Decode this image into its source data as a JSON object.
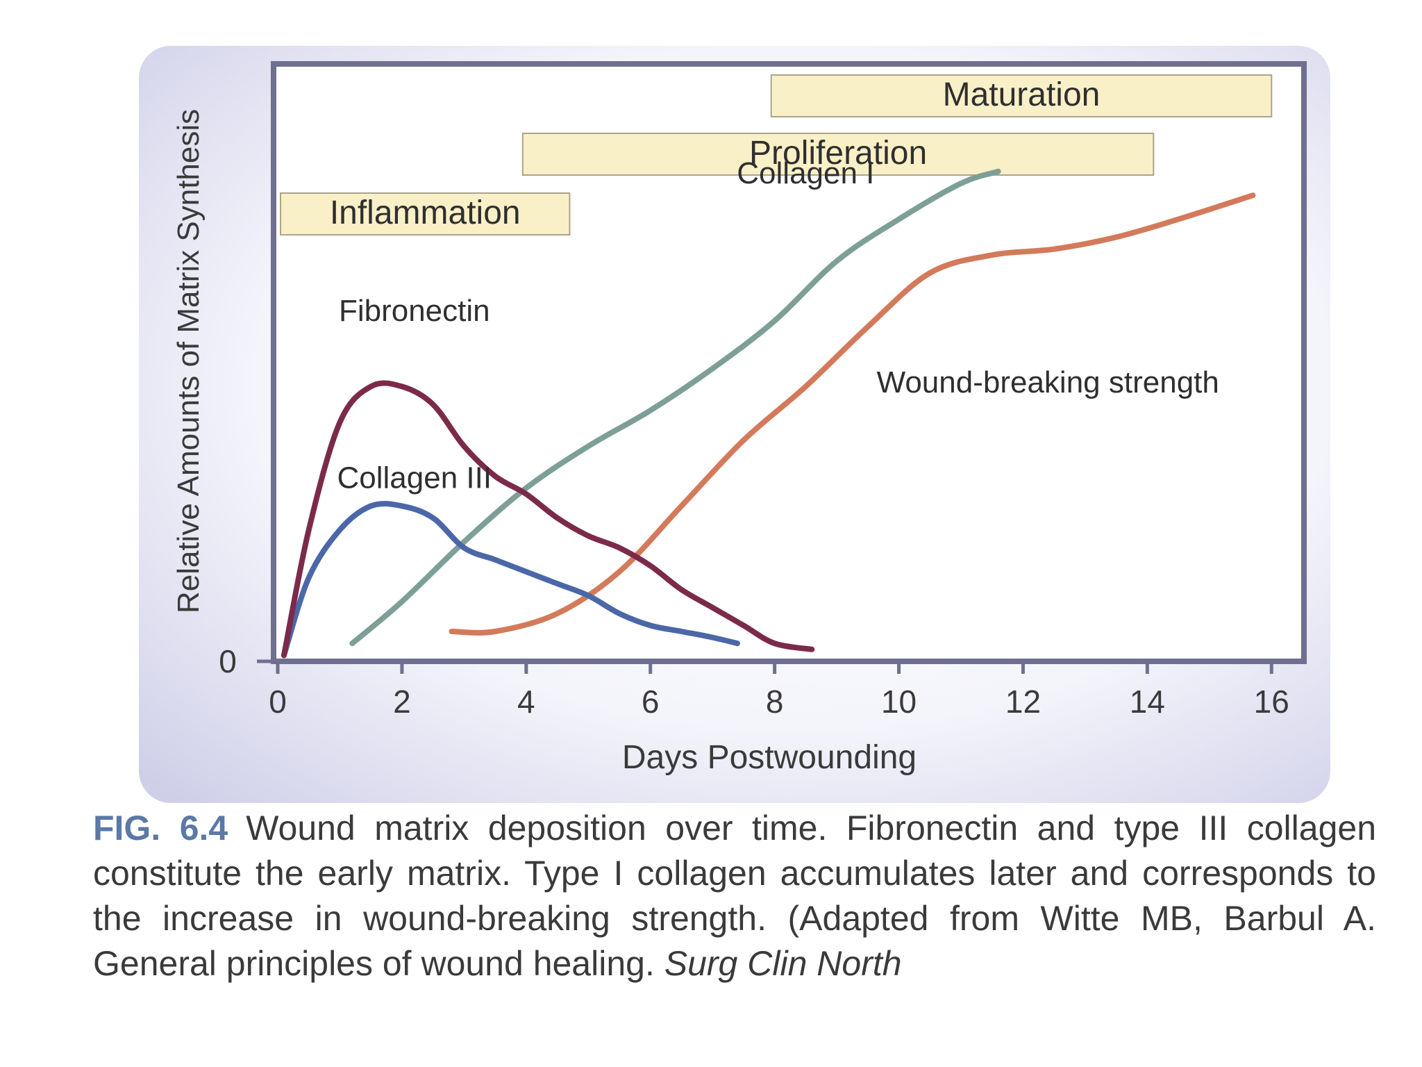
{
  "chart_data": {
    "type": "line",
    "xlabel": "Days Postwounding",
    "ylabel": "Relative Amounts of Matrix Synthesis",
    "xlim": [
      0,
      16.5
    ],
    "ylim": [
      0,
      10
    ],
    "x_ticks": [
      "0",
      "2",
      "4",
      "6",
      "8",
      "10",
      "12",
      "14",
      "16"
    ],
    "y_ticks": [
      "0"
    ],
    "grid": false,
    "series": [
      {
        "name": "Fibronectin",
        "color": "#7b2a4a",
        "points": [
          [
            0.1,
            0.1
          ],
          [
            0.5,
            2.2
          ],
          [
            1.0,
            4.0
          ],
          [
            1.5,
            4.6
          ],
          [
            2.0,
            4.6
          ],
          [
            2.5,
            4.3
          ],
          [
            3.0,
            3.6
          ],
          [
            3.5,
            3.1
          ],
          [
            4.0,
            2.8
          ],
          [
            4.5,
            2.4
          ],
          [
            5.0,
            2.1
          ],
          [
            5.5,
            1.9
          ],
          [
            6.0,
            1.6
          ],
          [
            6.5,
            1.2
          ],
          [
            7.0,
            0.9
          ],
          [
            7.5,
            0.6
          ],
          [
            8.0,
            0.3
          ],
          [
            8.6,
            0.2
          ]
        ]
      },
      {
        "name": "Collagen III",
        "color": "#4b67a8",
        "points": [
          [
            0.1,
            0.1
          ],
          [
            0.5,
            1.4
          ],
          [
            1.0,
            2.2
          ],
          [
            1.5,
            2.6
          ],
          [
            2.0,
            2.6
          ],
          [
            2.5,
            2.4
          ],
          [
            3.0,
            1.9
          ],
          [
            3.5,
            1.7
          ],
          [
            4.0,
            1.5
          ],
          [
            4.5,
            1.3
          ],
          [
            5.0,
            1.1
          ],
          [
            5.5,
            0.8
          ],
          [
            6.0,
            0.6
          ],
          [
            6.5,
            0.5
          ],
          [
            7.0,
            0.4
          ],
          [
            7.4,
            0.3
          ]
        ]
      },
      {
        "name": "Collagen I",
        "color": "#7d9f98",
        "points": [
          [
            1.2,
            0.3
          ],
          [
            2.0,
            1.0
          ],
          [
            3.0,
            2.0
          ],
          [
            4.0,
            2.9
          ],
          [
            5.0,
            3.6
          ],
          [
            6.0,
            4.2
          ],
          [
            7.0,
            4.9
          ],
          [
            8.0,
            5.7
          ],
          [
            9.0,
            6.7
          ],
          [
            10.0,
            7.4
          ],
          [
            11.0,
            8.0
          ],
          [
            11.6,
            8.2
          ]
        ]
      },
      {
        "name": "Wound-breaking strength",
        "color": "#d37a5b",
        "points": [
          [
            2.8,
            0.5
          ],
          [
            3.5,
            0.5
          ],
          [
            4.5,
            0.8
          ],
          [
            5.5,
            1.5
          ],
          [
            6.5,
            2.6
          ],
          [
            7.5,
            3.7
          ],
          [
            8.5,
            4.6
          ],
          [
            9.5,
            5.6
          ],
          [
            10.5,
            6.5
          ],
          [
            11.5,
            6.8
          ],
          [
            12.5,
            6.9
          ],
          [
            13.5,
            7.1
          ],
          [
            14.5,
            7.4
          ],
          [
            15.7,
            7.8
          ]
        ]
      }
    ],
    "phases": [
      {
        "name": "Inflammation",
        "start": 0,
        "end": 4.7
      },
      {
        "name": "Proliferation",
        "start": 3.9,
        "end": 14.1
      },
      {
        "name": "Maturation",
        "start": 7.9,
        "end": 16
      }
    ],
    "series_labels": [
      {
        "text": "Fibronectin",
        "x": 2.2,
        "y": 5.7
      },
      {
        "text": "Collagen III",
        "x": 2.2,
        "y": 2.9
      },
      {
        "text": "Collagen I",
        "x": 8.5,
        "y": 8.0
      },
      {
        "text": "Wound-breaking strength",
        "x": 12.4,
        "y": 4.5
      }
    ]
  },
  "caption": {
    "fig_label": "FIG. 6.4",
    "text": "Wound matrix deposition over time. Fibronectin and type III collagen constitute the early matrix. Type I collagen accumulates later and corresponds to the increase in wound-breaking strength. (Adapted from Witte MB, Barbul A. General principles of wound healing.",
    "journal": "Surg Clin North"
  }
}
